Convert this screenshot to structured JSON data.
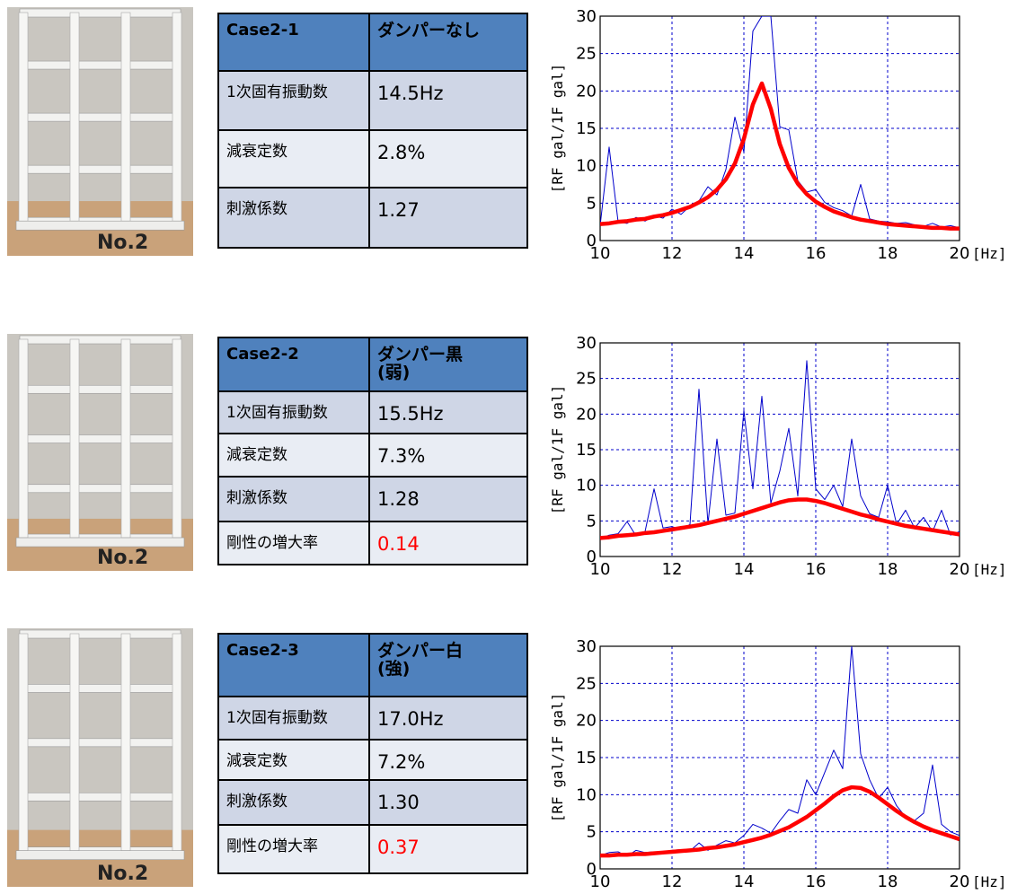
{
  "panels": [
    {
      "photo_label": "No.2",
      "table": {
        "header": [
          "Case2-1",
          "ダンパーなし"
        ],
        "rows": [
          [
            "1次固有振動数",
            "14.5Hz"
          ],
          [
            "減衰定数",
            "2.8%"
          ],
          [
            "刺激係数",
            "1.27"
          ]
        ]
      }
    },
    {
      "photo_label": "No.2",
      "table": {
        "header": [
          "Case2-2",
          "ダンパー黒\n(弱)"
        ],
        "rows": [
          [
            "1次固有振動数",
            "15.5Hz"
          ],
          [
            "減衰定数",
            "7.3%"
          ],
          [
            "刺激係数",
            "1.28"
          ],
          [
            "剛性の増大率",
            "0.14"
          ]
        ]
      }
    },
    {
      "photo_label": "No.2",
      "table": {
        "header": [
          "Case2-3",
          "ダンパー白\n(強)"
        ],
        "rows": [
          [
            "1次固有振動数",
            "17.0Hz"
          ],
          [
            "減衰定数",
            "7.2%"
          ],
          [
            "刺激係数",
            "1.30"
          ],
          [
            "剛性の増大率",
            "0.37"
          ]
        ]
      }
    }
  ],
  "chart_data": [
    {
      "type": "line",
      "ylabel": "[RF gal/1F gal]",
      "xunit": "[Hz]",
      "x": [
        10,
        10.25,
        10.5,
        10.75,
        11,
        11.25,
        11.5,
        11.75,
        12,
        12.25,
        12.5,
        12.75,
        13,
        13.25,
        13.5,
        13.75,
        14,
        14.25,
        14.5,
        14.75,
        15,
        15.25,
        15.5,
        15.75,
        16,
        16.25,
        16.5,
        16.75,
        17,
        17.25,
        17.5,
        17.75,
        18,
        18.25,
        18.5,
        18.75,
        19,
        19.25,
        19.5,
        19.75,
        20
      ],
      "series": [
        {
          "color": "#0000cc",
          "values": [
            2.0,
            12.5,
            2.5,
            2.3,
            3.1,
            2.6,
            3.3,
            3.0,
            4.2,
            3.5,
            4.6,
            5.3,
            7.2,
            6.1,
            9.5,
            16.5,
            11.8,
            28,
            30,
            30,
            15.2,
            14.8,
            8.0,
            6.5,
            6.8,
            5.1,
            4.4,
            4.0,
            3.3,
            7.5,
            2.9,
            2.6,
            2.5,
            2.3,
            2.4,
            2.1,
            1.9,
            2.3,
            1.8,
            2.0,
            1.7
          ]
        },
        {
          "color": "#ff0000",
          "values": [
            2.2,
            2.3,
            2.5,
            2.6,
            2.8,
            2.9,
            3.2,
            3.4,
            3.7,
            4.1,
            4.5,
            5.1,
            5.8,
            6.8,
            8.2,
            10.3,
            13.6,
            18.2,
            21.0,
            17.6,
            12.9,
            9.7,
            7.6,
            6.2,
            5.2,
            4.5,
            3.9,
            3.5,
            3.1,
            2.8,
            2.6,
            2.4,
            2.2,
            2.1,
            2.0,
            1.9,
            1.8,
            1.7,
            1.7,
            1.6,
            1.6
          ]
        }
      ],
      "xlim": [
        10,
        20
      ],
      "ylim": [
        0,
        30
      ],
      "xticks": [
        10,
        12,
        14,
        16,
        18,
        20
      ],
      "yticks": [
        0,
        5,
        10,
        15,
        20,
        25,
        30
      ],
      "grid": true
    },
    {
      "type": "line",
      "ylabel": "[RF gal/1F gal]",
      "xunit": "[Hz]",
      "x": [
        10,
        10.25,
        10.5,
        10.75,
        11,
        11.25,
        11.5,
        11.75,
        12,
        12.25,
        12.5,
        12.75,
        13,
        13.25,
        13.5,
        13.75,
        14,
        14.25,
        14.5,
        14.75,
        15,
        15.25,
        15.5,
        15.75,
        16,
        16.25,
        16.5,
        16.75,
        17,
        17.25,
        17.5,
        17.75,
        18,
        18.25,
        18.5,
        18.75,
        19,
        19.25,
        19.5,
        19.75,
        20
      ],
      "series": [
        {
          "color": "#0000cc",
          "values": [
            2.5,
            3.0,
            3.2,
            4.9,
            2.9,
            3.5,
            9.5,
            4.0,
            4.2,
            3.8,
            4.5,
            23.5,
            4.6,
            16.5,
            5.8,
            6.1,
            20.5,
            9.5,
            22.5,
            7.5,
            12.0,
            18.0,
            8.5,
            27.5,
            9.5,
            8.0,
            10.0,
            7.0,
            16.5,
            8.5,
            6.0,
            5.5,
            10.0,
            4.5,
            6.5,
            4.0,
            5.5,
            3.5,
            6.5,
            3.0,
            3.5
          ]
        },
        {
          "color": "#ff0000",
          "values": [
            2.6,
            2.7,
            2.9,
            3.0,
            3.1,
            3.3,
            3.4,
            3.6,
            3.8,
            4.0,
            4.2,
            4.4,
            4.7,
            5.0,
            5.3,
            5.6,
            6.0,
            6.4,
            6.8,
            7.2,
            7.6,
            7.9,
            8.0,
            8.0,
            7.8,
            7.5,
            7.1,
            6.7,
            6.3,
            5.9,
            5.6,
            5.2,
            4.9,
            4.6,
            4.3,
            4.1,
            3.9,
            3.7,
            3.5,
            3.3,
            3.1
          ]
        }
      ],
      "xlim": [
        10,
        20
      ],
      "ylim": [
        0,
        30
      ],
      "xticks": [
        10,
        12,
        14,
        16,
        18,
        20
      ],
      "yticks": [
        0,
        5,
        10,
        15,
        20,
        25,
        30
      ],
      "grid": true
    },
    {
      "type": "line",
      "ylabel": "[RF gal/1F gal]",
      "xunit": "[Hz]",
      "x": [
        10,
        10.25,
        10.5,
        10.75,
        11,
        11.25,
        11.5,
        11.75,
        12,
        12.25,
        12.5,
        12.75,
        13,
        13.25,
        13.5,
        13.75,
        14,
        14.25,
        14.5,
        14.75,
        15,
        15.25,
        15.5,
        15.75,
        16,
        16.25,
        16.5,
        16.75,
        17,
        17.25,
        17.5,
        17.75,
        18,
        18.25,
        18.5,
        18.75,
        19,
        19.25,
        19.5,
        19.75,
        20
      ],
      "series": [
        {
          "color": "#0000cc",
          "values": [
            1.8,
            2.2,
            2.3,
            1.7,
            2.5,
            2.2,
            2.3,
            2.0,
            2.5,
            2.6,
            2.4,
            3.5,
            2.5,
            3.2,
            3.8,
            3.5,
            4.5,
            6.0,
            5.5,
            4.8,
            6.5,
            8.0,
            7.5,
            12.0,
            10.0,
            13.0,
            16.0,
            13.5,
            30,
            15.5,
            12.0,
            9.5,
            11.0,
            8.5,
            7.0,
            6.5,
            7.5,
            14.0,
            6.0,
            5.0,
            4.5
          ]
        },
        {
          "color": "#ff0000",
          "values": [
            1.8,
            1.8,
            1.9,
            1.9,
            2.0,
            2.0,
            2.1,
            2.2,
            2.3,
            2.4,
            2.5,
            2.6,
            2.8,
            2.9,
            3.1,
            3.3,
            3.6,
            3.9,
            4.2,
            4.6,
            5.1,
            5.6,
            6.3,
            7.0,
            7.9,
            8.8,
            9.8,
            10.6,
            11.0,
            10.9,
            10.4,
            9.6,
            8.7,
            7.8,
            7.0,
            6.3,
            5.7,
            5.2,
            4.8,
            4.4,
            4.0
          ]
        }
      ],
      "xlim": [
        10,
        20
      ],
      "ylim": [
        0,
        30
      ],
      "xticks": [
        10,
        12,
        14,
        16,
        18,
        20
      ],
      "yticks": [
        0,
        5,
        10,
        15,
        20,
        25,
        30
      ],
      "grid": true
    }
  ]
}
